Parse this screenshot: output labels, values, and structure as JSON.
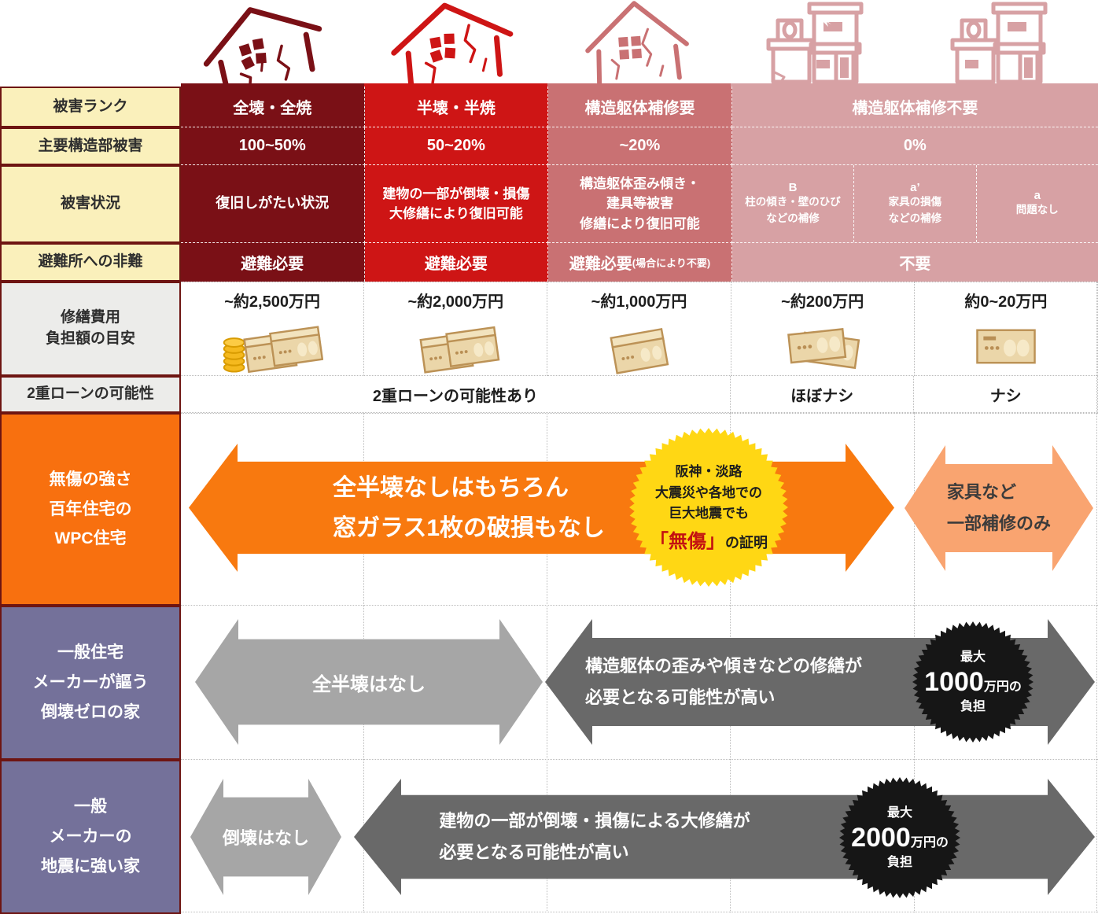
{
  "colors": {
    "rank1_dark_red": "#7A1016",
    "rank2_red": "#CE1515",
    "rank3_rose": "#C97173",
    "rank45_pink": "#D7A1A4",
    "label_yellow": "#FAF0BB",
    "label_gray": "#ECECEA",
    "label_border_dark_red": "#6E1512",
    "wpc_orange": "#F8700F",
    "salmon_arrow": "#F9A470",
    "badge_yellow": "#FFD714",
    "badge_highlight_red": "#C31111",
    "maker_purple": "#74719A",
    "light_gray_arrow": "#A6A6A6",
    "dark_gray_arrow": "#696969",
    "badge_black": "#161616"
  },
  "icons": {
    "col1": "house-collapsed-icon",
    "col2": "house-half-collapsed-icon",
    "col3": "house-cracked-icon",
    "col4": "building-minor-damage-icon",
    "col5": "building-intact-icon",
    "money1": "coins-and-two-bill-bundles-icon",
    "money2": "two-bill-bundles-icon",
    "money3": "one-bill-bundle-icon",
    "money4": "two-banknotes-icon",
    "money5": "one-banknote-icon"
  },
  "table": {
    "row_labels": {
      "rank": "被害ランク",
      "structural": "主要構造部被害",
      "situation": "被害状況",
      "evacuation": "避難所への非難",
      "cost": "修繕費用\n負担額の目安",
      "loan": "2重ローンの可能性"
    },
    "ranks": [
      "全壊・全焼",
      "半壊・半焼",
      "構造躯体補修要",
      "構造躯体補修不要"
    ],
    "damages": [
      "100~50%",
      "50~20%",
      "~20%",
      "0%"
    ],
    "situations": [
      "復旧しがたい状況",
      "建物の一部が倒壊・損傷\n大修繕により復旧可能",
      "構造躯体歪み傾き・\n建具等被害\n修繕により復旧可能"
    ],
    "subcells": [
      {
        "grade": "B",
        "desc": "柱の傾き・壁のひび\nなどの補修"
      },
      {
        "grade": "a’",
        "desc": "家具の損傷\nなどの補修"
      },
      {
        "grade": "a",
        "desc": "問題なし"
      }
    ],
    "evacuations": [
      "避難必要",
      "避難必要",
      "避難必要",
      "不要"
    ],
    "evacuation_note": "(場合により不要)",
    "costs": [
      "~約2,500万円",
      "~約2,000万円",
      "~約1,000万円",
      "~約200万円",
      "約0~20万円"
    ],
    "loan": {
      "span": "2重ローンの可能性あり",
      "col4": "ほぼナシ",
      "col5": "ナシ"
    }
  },
  "comparison": {
    "wpc": {
      "label": "無傷の強さ\n百年住宅の\nWPC住宅",
      "main_arrow": "全半壊なしはもちろん\n窓ガラス1枚の破損もなし",
      "badge_lines": "阪神・淡路\n大震災や各地での\n巨大地震でも",
      "badge_highlight": "「無傷」",
      "badge_tail": "の証明",
      "right_arrow": "家具など\n一部補修のみ"
    },
    "general_zero": {
      "label": "一般住宅\nメーカーが謳う\n倒壊ゼロの家",
      "left_arrow": "全半壊はなし",
      "right_arrow": "構造躯体の歪みや傾きなどの修繕が\n必要となる可能性が高い",
      "badge": {
        "top": "最大",
        "amount": "1000",
        "unit": "万円の",
        "bottom": "負担"
      }
    },
    "general_strong": {
      "label": "一般\nメーカーの\n地震に強い家",
      "left_arrow": "倒壊はなし",
      "right_arrow": "建物の一部が倒壊・損傷による大修繕が\n必要となる可能性が高い",
      "badge": {
        "top": "最大",
        "amount": "2000",
        "unit": "万円の",
        "bottom": "負担"
      }
    }
  }
}
